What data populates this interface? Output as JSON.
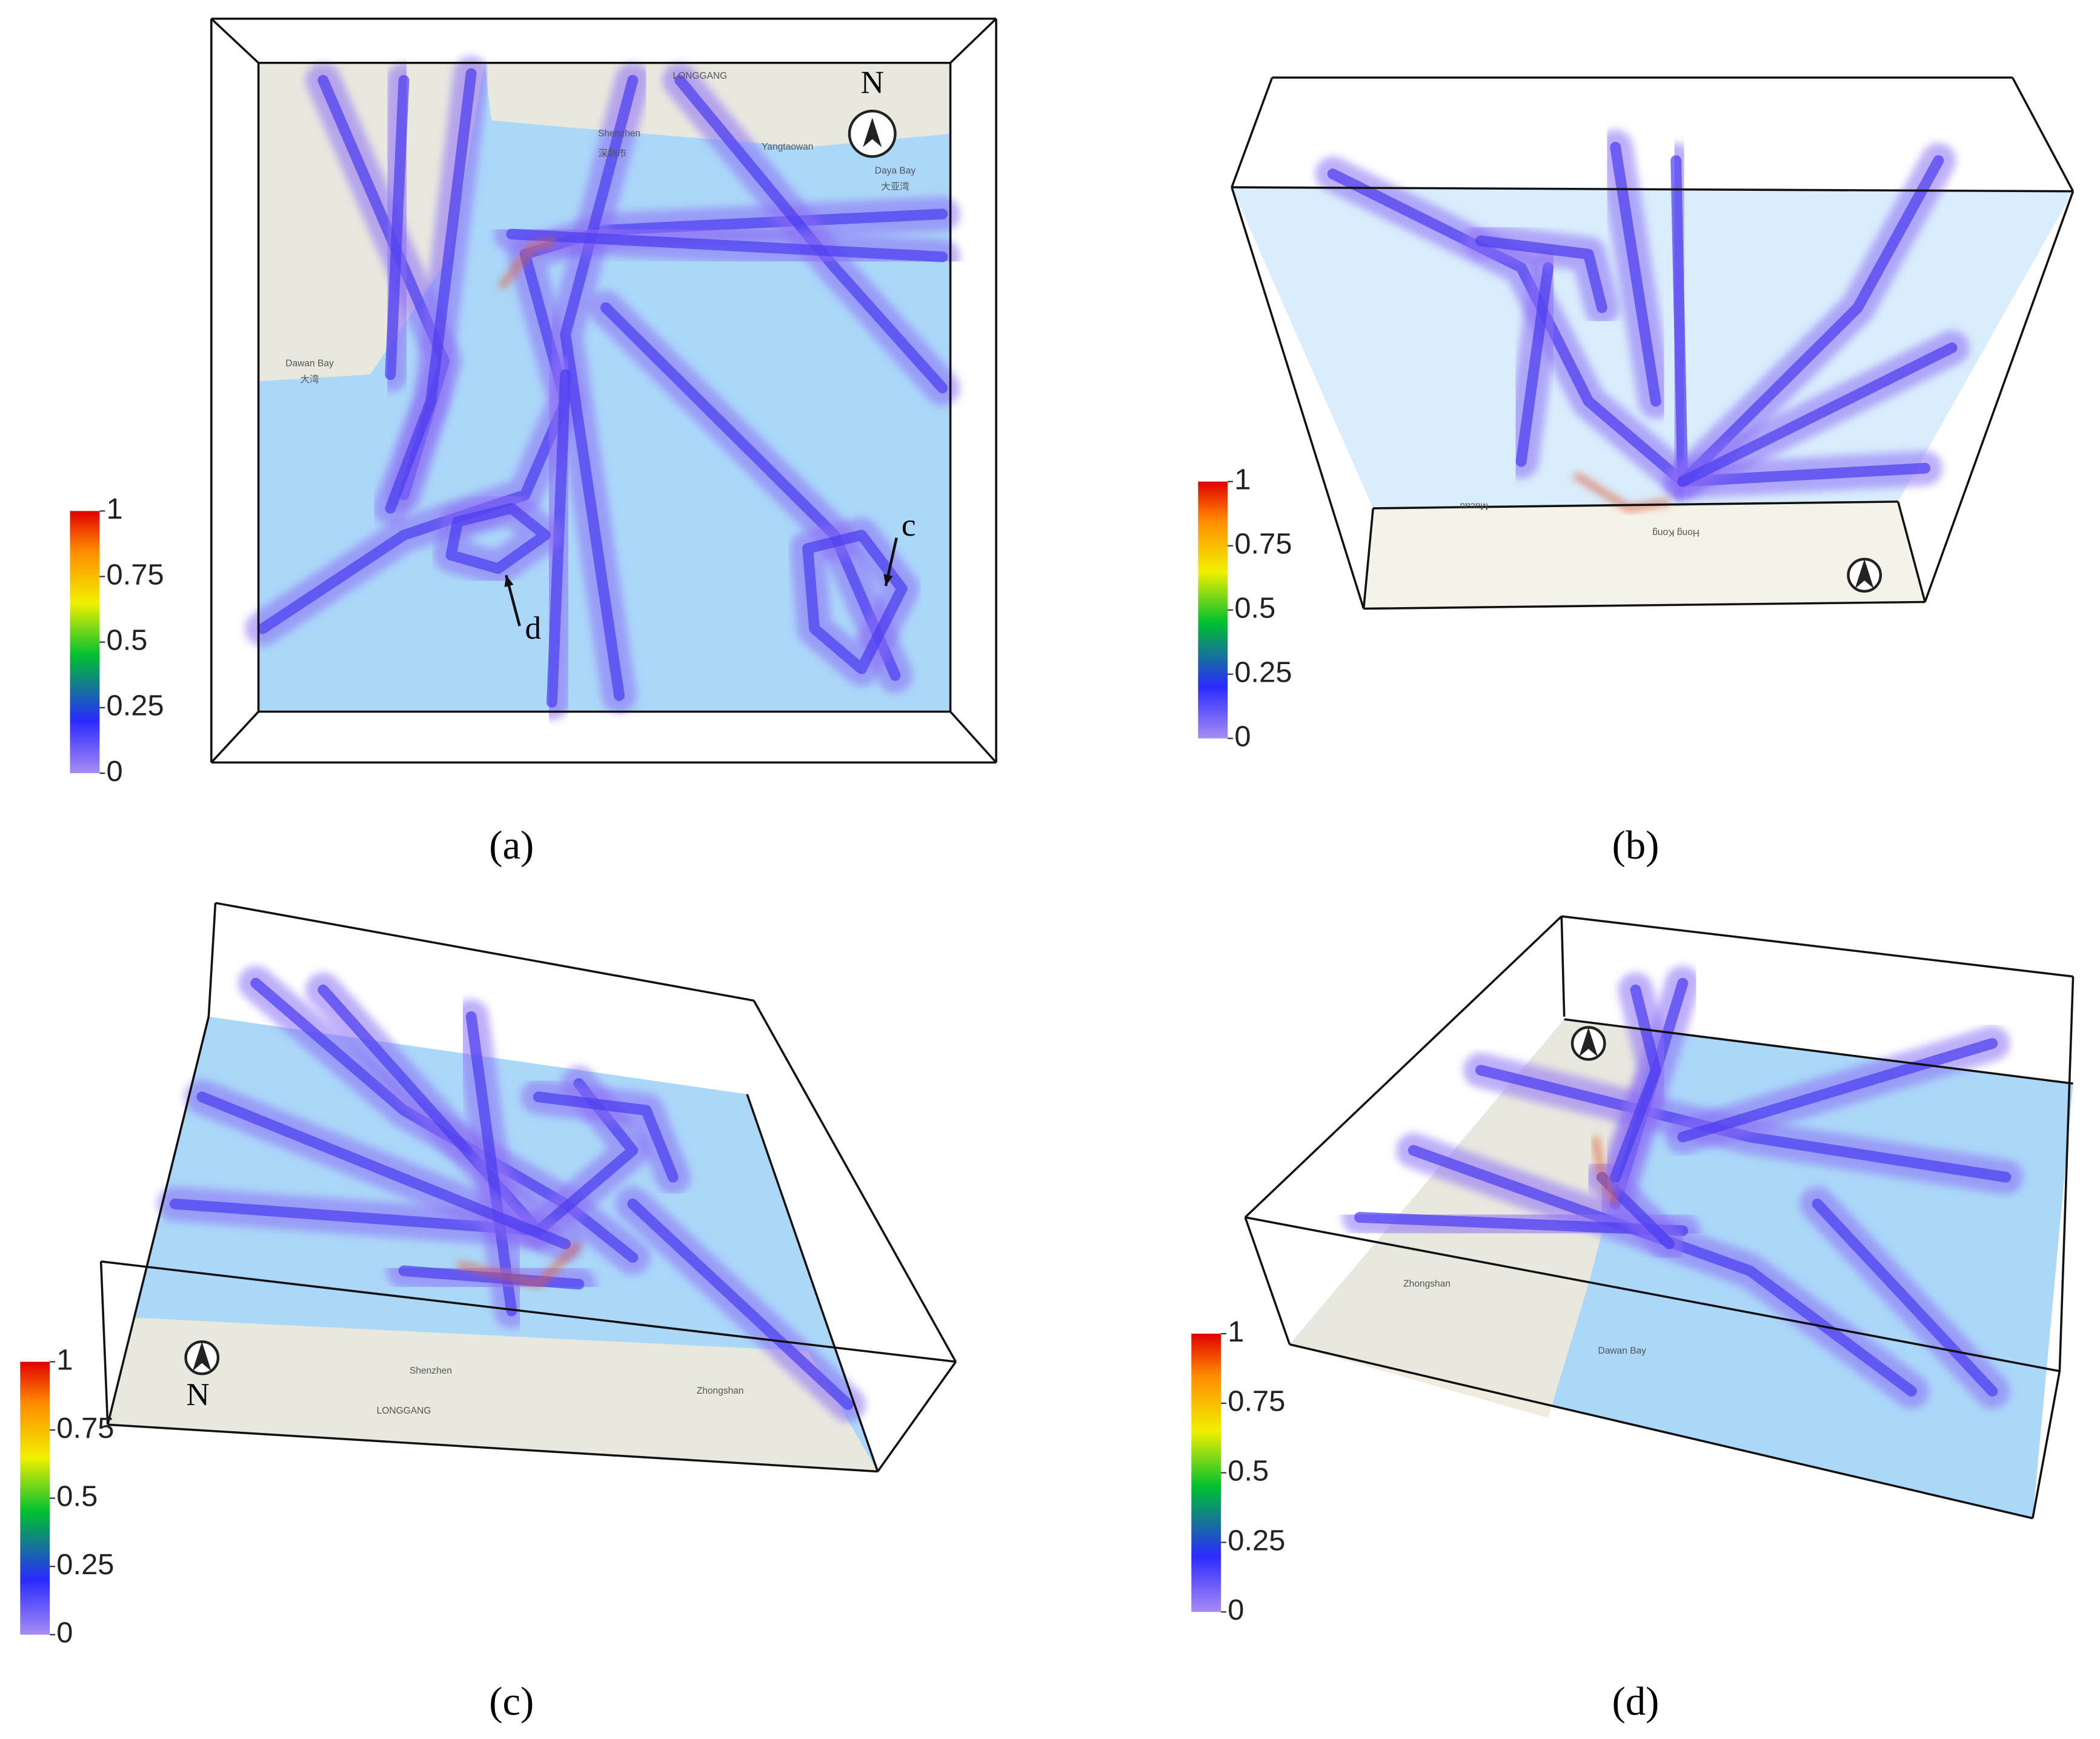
{
  "panels": [
    {
      "caption": "(a)",
      "colorbar": {
        "ticks": [
          0,
          0.25,
          0.5,
          0.75,
          1
        ]
      },
      "annotations": [
        "c",
        "d",
        "N"
      ],
      "map_labels": [
        "Shenzhen",
        "深圳市",
        "LONGGANG",
        "Yangtaowan",
        "Daya Bay",
        "大亚湾",
        "Dawan Bay",
        "大湾"
      ]
    },
    {
      "caption": "(b)",
      "colorbar": {
        "ticks": [
          0,
          0.25,
          0.5,
          0.75,
          1
        ]
      },
      "annotations": [],
      "map_labels": [
        "Macau",
        "Hong Kong"
      ]
    },
    {
      "caption": "(c)",
      "colorbar": {
        "ticks": [
          0,
          0.25,
          0.5,
          0.75,
          1
        ]
      },
      "annotations": [
        "N"
      ],
      "map_labels": [
        "Shenzhen",
        "Zhongshan",
        "LONGGANG"
      ]
    },
    {
      "caption": "(d)",
      "colorbar": {
        "ticks": [
          0,
          0.25,
          0.5,
          0.75,
          1
        ]
      },
      "annotations": [],
      "map_labels": [
        "Zhongshan",
        "Dawan Bay"
      ]
    }
  ]
}
